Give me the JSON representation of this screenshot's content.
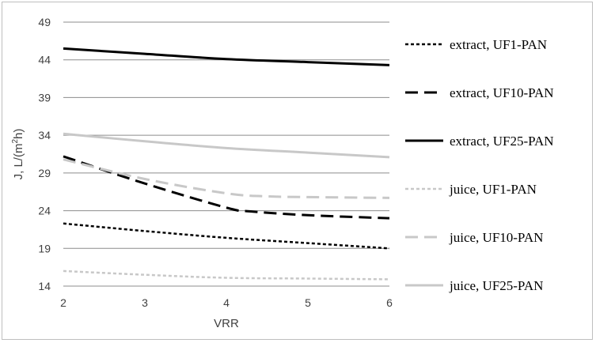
{
  "chart_data": {
    "type": "line",
    "xlabel": "VRR",
    "ylabel": "J, L/(m²h)",
    "ylabel_parts": {
      "main": "J, L/(m",
      "sup": "2",
      "tail": "h)"
    },
    "xlim": [
      2,
      6
    ],
    "ylim": [
      14,
      49
    ],
    "x_ticks": [
      2,
      3,
      4,
      5,
      6
    ],
    "y_ticks": [
      14,
      19,
      24,
      29,
      34,
      39,
      44,
      49
    ],
    "grid": "horizontal",
    "legend_position": "right",
    "series": [
      {
        "name": "extract, UF1-PAN",
        "color": "#000000",
        "dash": "dotted",
        "x": [
          2,
          3,
          4,
          5,
          6
        ],
        "y": [
          22.3,
          21.3,
          20.4,
          19.7,
          19.0
        ]
      },
      {
        "name": "extract, UF10-PAN",
        "color": "#000000",
        "dash": "dashed",
        "x": [
          2,
          3,
          4,
          4.3,
          5,
          6
        ],
        "y": [
          31.2,
          27.6,
          24.4,
          23.9,
          23.4,
          23.0
        ]
      },
      {
        "name": "extract, UF25-PAN",
        "color": "#000000",
        "dash": "solid",
        "x": [
          2,
          3,
          4,
          5,
          6
        ],
        "y": [
          45.5,
          44.8,
          44.1,
          43.7,
          43.3
        ]
      },
      {
        "name": "juice, UF1-PAN",
        "color": "#c8c8c8",
        "dash": "dotted",
        "x": [
          2,
          3,
          4,
          5,
          6
        ],
        "y": [
          16.0,
          15.5,
          15.1,
          15.0,
          14.9
        ]
      },
      {
        "name": "juice, UF10-PAN",
        "color": "#c8c8c8",
        "dash": "dashed",
        "x": [
          2,
          3,
          4,
          4.5,
          5,
          6
        ],
        "y": [
          30.8,
          28.2,
          26.3,
          25.9,
          25.8,
          25.7
        ]
      },
      {
        "name": "juice, UF25-PAN",
        "color": "#c8c8c8",
        "dash": "solid",
        "x": [
          2,
          3,
          4,
          5,
          6
        ],
        "y": [
          34.2,
          33.2,
          32.3,
          31.7,
          31.1
        ]
      }
    ]
  }
}
